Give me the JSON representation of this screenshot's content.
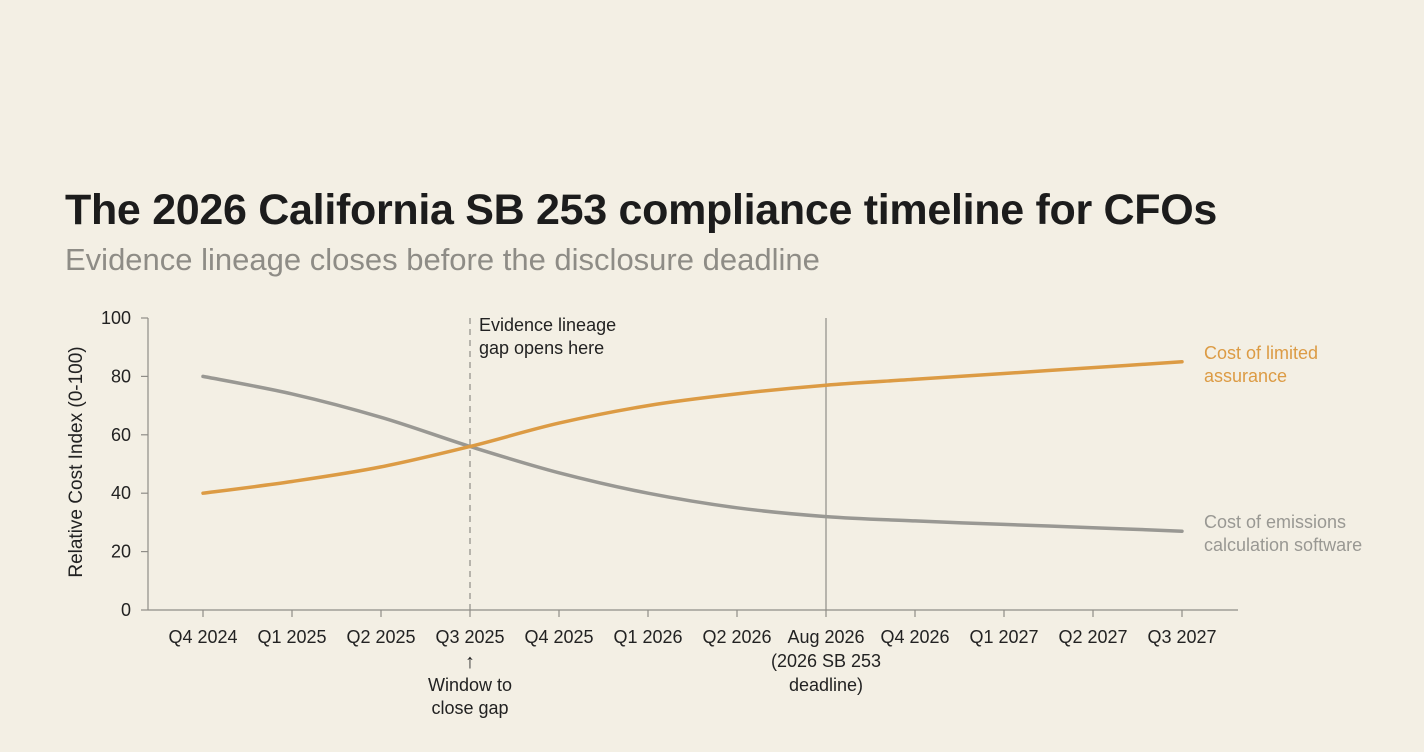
{
  "chart_data": {
    "type": "line",
    "title": "The 2026 California SB 253 compliance timeline for CFOs",
    "subtitle": "Evidence lineage closes before the disclosure deadline",
    "ylabel": "Relative Cost Index (0-100)",
    "xlabel": "",
    "ylim": [
      0,
      100
    ],
    "yticks": [
      0,
      20,
      40,
      60,
      80,
      100
    ],
    "grid": false,
    "categories": [
      [
        "Q4 2024"
      ],
      [
        "Q1 2025"
      ],
      [
        "Q2 2025"
      ],
      [
        "Q3 2025"
      ],
      [
        "Q4 2025"
      ],
      [
        "Q1 2026"
      ],
      [
        "Q2 2026"
      ],
      [
        "Aug 2026",
        "(2026 SB 253",
        "deadline)"
      ],
      [
        "Q4 2026"
      ],
      [
        "Q1 2027"
      ],
      [
        "Q2 2027"
      ],
      [
        "Q3 2027"
      ]
    ],
    "series": [
      {
        "name": [
          "Cost of limited",
          "assurance"
        ],
        "color": "#dc9b44",
        "values": [
          40,
          44,
          49,
          56,
          64,
          70,
          74,
          77,
          79,
          81,
          83,
          85
        ]
      },
      {
        "name": [
          "Cost of emissions",
          "calculation software"
        ],
        "color": "#999893",
        "values": [
          80,
          74,
          66,
          56,
          47,
          40,
          35,
          32,
          30.5,
          29.3,
          28.2,
          27
        ]
      }
    ],
    "annotations": [
      {
        "at": 3,
        "style": "dashed",
        "label": [
          "Evidence lineage",
          "gap opens here"
        ]
      },
      {
        "at": 7,
        "style": "solid",
        "label": []
      }
    ],
    "below_axis_note": {
      "at": 3,
      "arrow": "↑",
      "label": [
        "Window to",
        "close gap"
      ]
    }
  }
}
